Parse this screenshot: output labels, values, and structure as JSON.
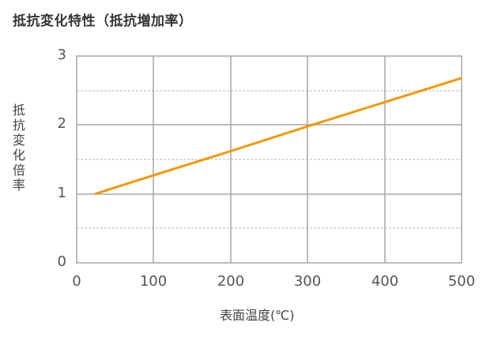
{
  "title": "抵抗変化特性（抵抗増加率）",
  "chart_data": {
    "type": "line",
    "title": "抵抗変化特性（抵抗増加率）",
    "xlabel": "表面温度（℃）",
    "ylabel": "抵抗変化倍率",
    "xlim": [
      0,
      500
    ],
    "ylim": [
      0,
      3
    ],
    "x_ticks": [
      "0",
      "100",
      "200",
      "300",
      "400",
      "500"
    ],
    "y_ticks": [
      "0",
      "1",
      "2",
      "3"
    ],
    "grid": {
      "major": true,
      "minor_y_dashed": [
        0.5,
        1.5,
        2.5
      ]
    },
    "legend": null,
    "series": [
      {
        "name": "抵抗変化倍率",
        "color": "#f39800",
        "x": [
          24,
          100,
          200,
          300,
          400,
          500
        ],
        "y": [
          1.0,
          1.27,
          1.62,
          1.98,
          2.33,
          2.68
        ]
      }
    ]
  },
  "ylabel_chars": [
    "抵",
    "抗",
    "変",
    "化",
    "倍",
    "率"
  ],
  "xlabel": "表面温度(℃)",
  "yticks": [
    "3",
    "2",
    "1",
    "0"
  ],
  "xticks": [
    "0",
    "100",
    "200",
    "300",
    "400",
    "500"
  ]
}
